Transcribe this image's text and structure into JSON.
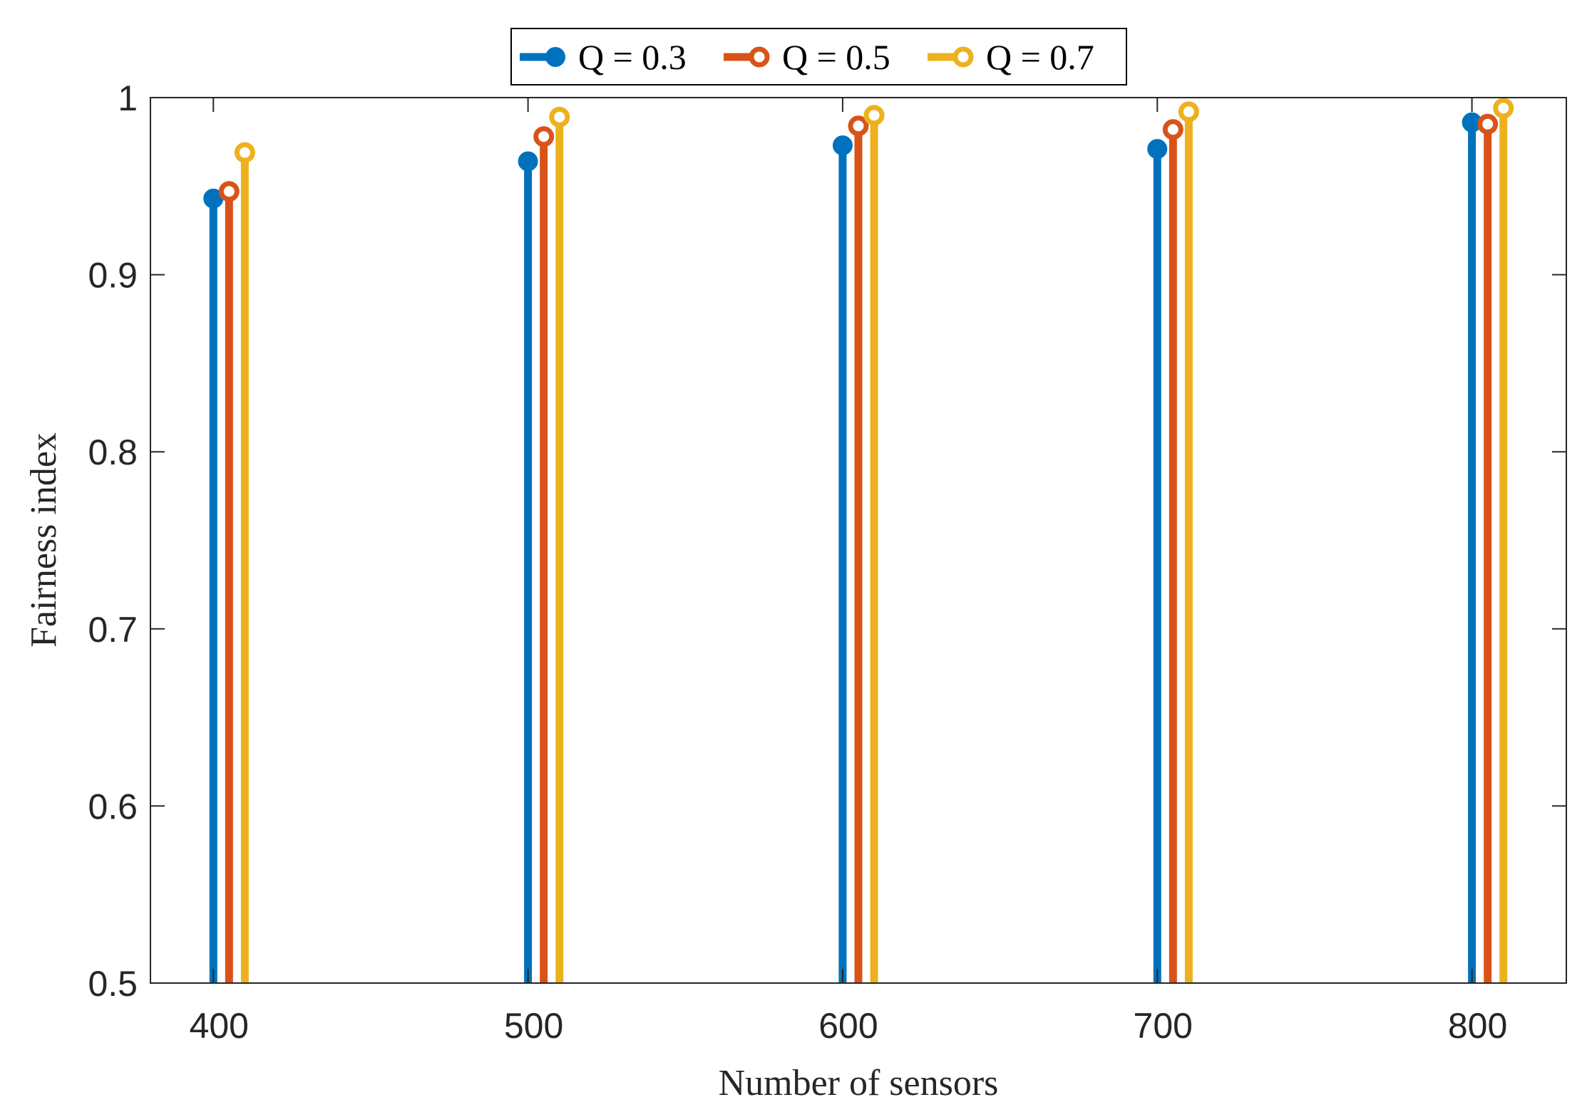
{
  "chart_data": {
    "type": "stem",
    "title": "",
    "xlabel": "Number of sensors",
    "ylabel": "Fairness index",
    "categories": [
      400,
      500,
      600,
      700,
      800
    ],
    "x_tick_labels": [
      "400",
      "500",
      "600",
      "700",
      "800"
    ],
    "y_tick_labels": [
      "0.5",
      "0.6",
      "0.7",
      "0.8",
      "0.9",
      "1"
    ],
    "y_ticks": [
      0.5,
      0.6,
      0.7,
      0.8,
      0.9,
      1.0
    ],
    "ylim": [
      0.5,
      1.0
    ],
    "xlim": [
      380,
      830
    ],
    "legend_position": "top-center, outside, horizontal",
    "series": [
      {
        "name": "Q = 0.3",
        "color": "#0072BD",
        "marker": "filled-circle",
        "offset": 0,
        "values": [
          0.943,
          0.964,
          0.973,
          0.971,
          0.986
        ]
      },
      {
        "name": "Q = 0.5",
        "color": "#D95319",
        "marker": "open-circle",
        "offset": 5,
        "values": [
          0.947,
          0.978,
          0.984,
          0.982,
          0.985
        ]
      },
      {
        "name": "Q = 0.7",
        "color": "#EDB120",
        "marker": "open-circle",
        "offset": 10,
        "values": [
          0.969,
          0.989,
          0.99,
          0.992,
          0.994
        ]
      }
    ]
  }
}
